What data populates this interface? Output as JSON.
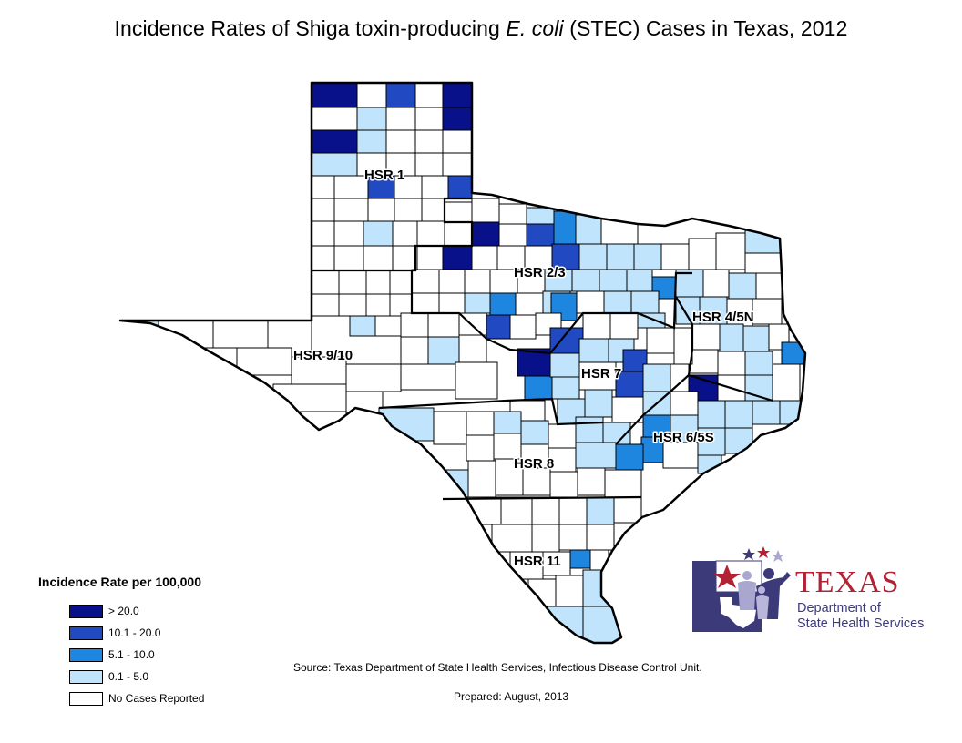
{
  "title": {
    "before": "Incidence Rates of Shiga toxin-producing ",
    "italic": "E. coli",
    "after": " (STEC) Cases in Texas, 2012"
  },
  "regions": [
    {
      "id": "hsr-1",
      "label": "HSR 1"
    },
    {
      "id": "hsr-2-3",
      "label": "HSR 2/3"
    },
    {
      "id": "hsr-4-5n",
      "label": "HSR 4/5N"
    },
    {
      "id": "hsr-9-10",
      "label": "HSR 9/10"
    },
    {
      "id": "hsr-7",
      "label": "HSR 7"
    },
    {
      "id": "hsr-6-5s",
      "label": "HSR 6/5S"
    },
    {
      "id": "hsr-8",
      "label": "HSR 8"
    },
    {
      "id": "hsr-11",
      "label": "HSR 11"
    }
  ],
  "legend": {
    "title": "Incidence Rate per 100,000",
    "classes": [
      {
        "label": "> 20.0",
        "color": "#08108a"
      },
      {
        "label": "10.1 - 20.0",
        "color": "#2149c2"
      },
      {
        "label": "5.1 - 10.0",
        "color": "#1f86e0"
      },
      {
        "label": "0.1 - 5.0",
        "color": "#bfe4fb"
      },
      {
        "label": "No Cases Reported",
        "color": "#ffffff"
      }
    ]
  },
  "source": "Source: Texas Department of State Health Services, Infectious Disease Control Unit.",
  "prepared": "Prepared: August, 2013",
  "logo": {
    "name": "TEXAS",
    "line1": "Department of",
    "line2": "State Health Services",
    "primary_color": "#3d3a7a",
    "accent_color": "#b22234"
  }
}
